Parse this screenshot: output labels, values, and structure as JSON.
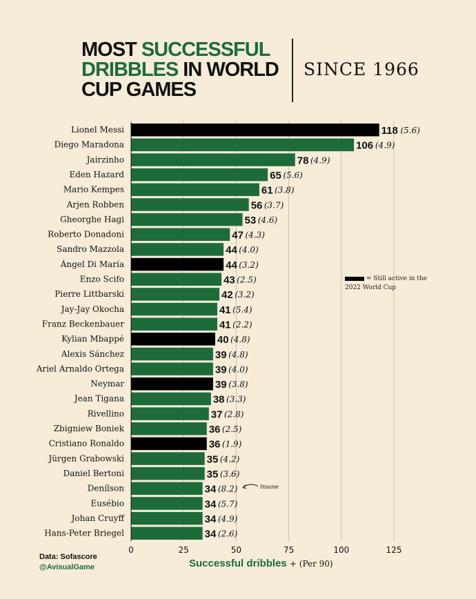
{
  "header": {
    "title_line1_a": "MOST ",
    "title_line1_b": "SUCCESSFUL",
    "title_line2_a": "DRIBBLES",
    "title_line2_b": " IN WORLD",
    "title_line3": "CUP GAMES",
    "since": "SINCE 1966"
  },
  "legend": {
    "text": "= Still active in the 2022 World Cup"
  },
  "annotation": "Insane",
  "xaxis": {
    "label": "Successful dribbles",
    "sub": "+ (Per 90)"
  },
  "source": {
    "data": "Data: Sofascore",
    "handle": "@AvisualGame"
  },
  "colors": {
    "green": "#1e6b3a",
    "black": "#000000",
    "background": "#f6ecd7"
  },
  "chart_data": {
    "type": "bar",
    "orientation": "horizontal",
    "title": "MOST SUCCESSFUL DRIBBLES IN WORLD CUP GAMES",
    "subtitle": "SINCE 1966",
    "xlabel": "Successful dribbles + (Per 90)",
    "xlim": [
      0,
      125
    ],
    "xticks": [
      0,
      25,
      50,
      75,
      100,
      125
    ],
    "grid": true,
    "legend": "Still active in the 2022 World Cup",
    "categories": [
      "Lionel Messi",
      "Diego Maradona",
      "Jairzinho",
      "Eden Hazard",
      "Mario Kempes",
      "Arjen Robben",
      "Gheorghe Hagi",
      "Roberto Donadoni",
      "Sandro Mazzola",
      "Ángel Di María",
      "Enzo Scifo",
      "Pierre Littbarski",
      "Jay-Jay Okocha",
      "Franz Beckenbauer",
      "Kylian Mbappé",
      "Alexis Sánchez",
      "Ariel Arnaldo Ortega",
      "Neymar",
      "Jean Tigana",
      "Rivellino",
      "Zbigniew Boniek",
      "Cristiano Ronaldo",
      "Jürgen Grabowski",
      "Daniel Bertoni",
      "Denílson",
      "Eusébio",
      "Johan Cruyff",
      "Hans-Peter Briegel"
    ],
    "values": [
      118,
      106,
      78,
      65,
      61,
      56,
      53,
      47,
      44,
      44,
      43,
      42,
      41,
      41,
      40,
      39,
      39,
      39,
      38,
      37,
      36,
      36,
      35,
      35,
      34,
      34,
      34,
      34
    ],
    "per90": [
      "5.6",
      "4.9",
      "4.9",
      "5.6",
      "3.8",
      "3.7",
      "4.6",
      "4.3",
      "4.0",
      "3.2",
      "2.5",
      "3.2",
      "5.4",
      "2.2",
      "4.8",
      "4.8",
      "4.0",
      "3.8",
      "3.3",
      "2.8",
      "2.5",
      "1.9",
      "4.2",
      "3.6",
      "8.2",
      "5.7",
      "4.9",
      "2.6"
    ],
    "active": [
      true,
      false,
      false,
      false,
      false,
      false,
      false,
      false,
      false,
      true,
      false,
      false,
      false,
      false,
      true,
      false,
      false,
      true,
      false,
      false,
      false,
      true,
      false,
      false,
      false,
      false,
      false,
      false
    ]
  }
}
